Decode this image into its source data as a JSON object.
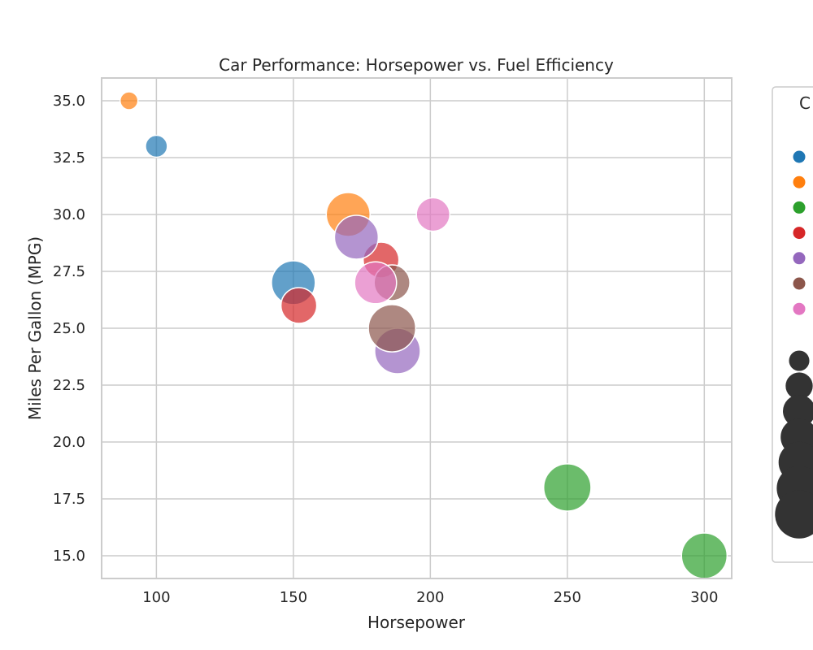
{
  "chart_data": {
    "type": "scatter",
    "title": "Car Performance: Horsepower vs. Fuel Efficiency",
    "xlabel": "Horsepower",
    "ylabel": "Miles Per Gallon (MPG)",
    "xlim": [
      80,
      310
    ],
    "ylim": [
      14,
      36
    ],
    "xticks": [
      100,
      150,
      200,
      250,
      300
    ],
    "yticks": [
      15.0,
      17.5,
      20.0,
      22.5,
      25.0,
      27.5,
      30.0,
      32.5,
      35.0
    ],
    "grid": true,
    "legend_title_visible": "C",
    "legend_placement": "right, outside plot (partially cut off)",
    "category_colors": [
      "#1f77b4",
      "#ff7f0e",
      "#2ca02c",
      "#d62728",
      "#9467bd",
      "#8c564b",
      "#e377c2"
    ],
    "size_scale": [
      1,
      2,
      3,
      4,
      5,
      6,
      7
    ],
    "points": [
      {
        "x": 90,
        "y": 35,
        "category": 1,
        "size": 1
      },
      {
        "x": 100,
        "y": 33,
        "category": 0,
        "size": 1.5
      },
      {
        "x": 170,
        "y": 30,
        "category": 1,
        "size": 6
      },
      {
        "x": 201,
        "y": 30,
        "category": 6,
        "size": 3.5
      },
      {
        "x": 182,
        "y": 28,
        "category": 3,
        "size": 4
      },
      {
        "x": 173,
        "y": 29,
        "category": 4,
        "size": 6
      },
      {
        "x": 150,
        "y": 27,
        "category": 0,
        "size": 6
      },
      {
        "x": 152,
        "y": 26,
        "category": 3,
        "size": 4
      },
      {
        "x": 186,
        "y": 27,
        "category": 5,
        "size": 4
      },
      {
        "x": 180,
        "y": 27,
        "category": 6,
        "size": 5.5
      },
      {
        "x": 188,
        "y": 24,
        "category": 4,
        "size": 6.5
      },
      {
        "x": 186,
        "y": 25,
        "category": 5,
        "size": 7
      },
      {
        "x": 250,
        "y": 18,
        "category": 2,
        "size": 7
      },
      {
        "x": 300,
        "y": 15,
        "category": 2,
        "size": 6.5
      }
    ]
  }
}
